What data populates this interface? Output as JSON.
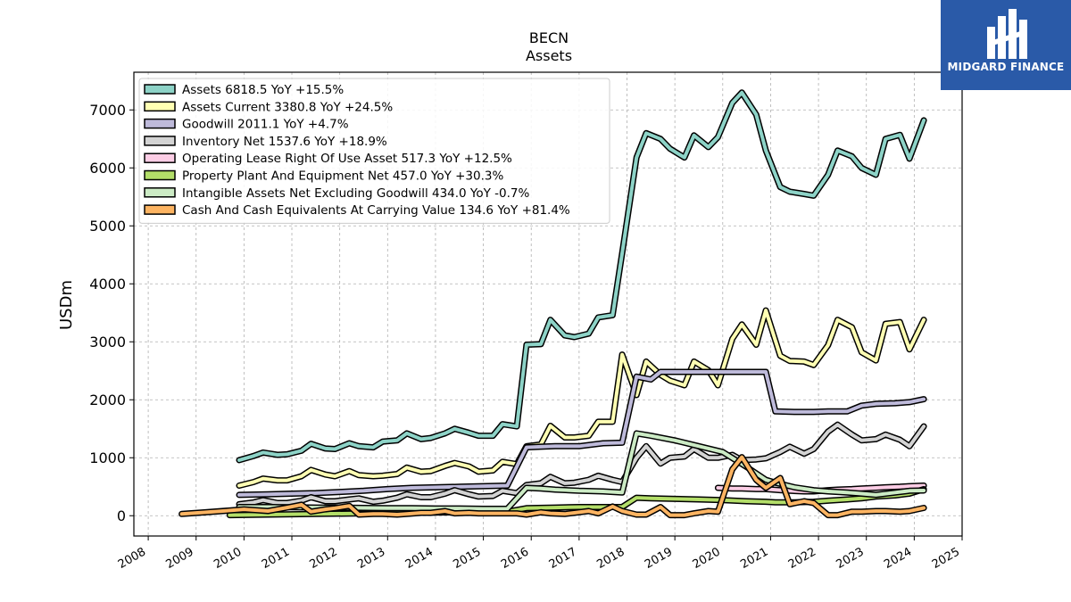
{
  "brand": {
    "name": "MIDGARD FINANCE",
    "color": "#2a5aa8"
  },
  "chart_data": {
    "type": "line",
    "title": "BECN",
    "subtitle": "Assets",
    "xlabel": "",
    "ylabel": "USDm",
    "xlim": [
      2007.7,
      2025.0
    ],
    "ylim": [
      -350,
      7650
    ],
    "xticks": [
      "2008",
      "2009",
      "2010",
      "2011",
      "2012",
      "2013",
      "2014",
      "2015",
      "2016",
      "2017",
      "2018",
      "2019",
      "2020",
      "2021",
      "2022",
      "2023",
      "2024",
      "2025"
    ],
    "yticks": [
      0,
      1000,
      2000,
      3000,
      4000,
      5000,
      6000,
      7000
    ],
    "grid": true,
    "legend_position": "top-left",
    "series": [
      {
        "name": "Assets 6818.5 YoY +15.5%",
        "color": "#8dd3c7",
        "x": [
          2009.9,
          2010.2,
          2010.4,
          2010.7,
          2010.9,
          2011.2,
          2011.4,
          2011.7,
          2011.9,
          2012.2,
          2012.4,
          2012.7,
          2012.9,
          2013.2,
          2013.4,
          2013.7,
          2013.9,
          2014.2,
          2014.4,
          2014.7,
          2014.9,
          2015.2,
          2015.4,
          2015.7,
          2015.9,
          2016.2,
          2016.4,
          2016.7,
          2016.9,
          2017.2,
          2017.4,
          2017.7,
          2017.9,
          2018.2,
          2018.4,
          2018.7,
          2018.9,
          2019.2,
          2019.4,
          2019.7,
          2019.9,
          2020.2,
          2020.4,
          2020.7,
          2020.9,
          2021.2,
          2021.4,
          2021.7,
          2021.9,
          2022.2,
          2022.4,
          2022.7,
          2022.9,
          2023.2,
          2023.4,
          2023.7,
          2023.9,
          2024.2
        ],
        "y": [
          960,
          1030,
          1090,
          1050,
          1060,
          1120,
          1240,
          1160,
          1150,
          1250,
          1200,
          1180,
          1280,
          1300,
          1420,
          1320,
          1340,
          1420,
          1500,
          1430,
          1380,
          1380,
          1580,
          1540,
          2950,
          2960,
          3380,
          3110,
          3080,
          3140,
          3420,
          3460,
          4530,
          6180,
          6600,
          6500,
          6330,
          6180,
          6560,
          6360,
          6530,
          7120,
          7300,
          6920,
          6300,
          5670,
          5590,
          5550,
          5520,
          5880,
          6300,
          6200,
          6000,
          5880,
          6500,
          6570,
          6160,
          6820
        ]
      },
      {
        "name": "Assets Current 3380.8 YoY +24.5%",
        "color": "#ffffb3",
        "x": [
          2009.9,
          2010.2,
          2010.4,
          2010.7,
          2010.9,
          2011.2,
          2011.4,
          2011.7,
          2011.9,
          2012.2,
          2012.4,
          2012.7,
          2012.9,
          2013.2,
          2013.4,
          2013.7,
          2013.9,
          2014.2,
          2014.4,
          2014.7,
          2014.9,
          2015.2,
          2015.4,
          2015.7,
          2015.9,
          2016.2,
          2016.4,
          2016.7,
          2016.9,
          2017.2,
          2017.4,
          2017.7,
          2017.9,
          2018.2,
          2018.4,
          2018.7,
          2018.9,
          2019.2,
          2019.4,
          2019.7,
          2019.9,
          2020.2,
          2020.4,
          2020.7,
          2020.9,
          2021.2,
          2021.4,
          2021.7,
          2021.9,
          2022.2,
          2022.4,
          2022.7,
          2022.9,
          2023.2,
          2023.4,
          2023.7,
          2023.9,
          2024.2
        ],
        "y": [
          520,
          580,
          640,
          610,
          610,
          680,
          790,
          710,
          680,
          770,
          700,
          680,
          690,
          720,
          830,
          760,
          770,
          860,
          910,
          850,
          760,
          780,
          930,
          890,
          1200,
          1230,
          1550,
          1350,
          1350,
          1380,
          1620,
          1620,
          2780,
          2080,
          2660,
          2430,
          2330,
          2250,
          2660,
          2510,
          2250,
          3050,
          3300,
          2950,
          3540,
          2760,
          2670,
          2660,
          2600,
          2940,
          3380,
          3250,
          2820,
          2680,
          3310,
          3340,
          2870,
          3380
        ]
      },
      {
        "name": "Goodwill 2011.1 YoY +4.7%",
        "color": "#bebada",
        "x": [
          2009.9,
          2010.5,
          2011.0,
          2011.5,
          2012.0,
          2012.5,
          2013.0,
          2013.5,
          2014.0,
          2014.5,
          2015.0,
          2015.5,
          2015.9,
          2016.2,
          2016.5,
          2017.0,
          2017.5,
          2017.9,
          2018.2,
          2018.5,
          2018.7,
          2019.0,
          2019.5,
          2020.0,
          2020.5,
          2020.9,
          2021.1,
          2021.5,
          2021.9,
          2022.2,
          2022.6,
          2022.9,
          2023.2,
          2023.6,
          2023.9,
          2024.2
        ],
        "y": [
          360,
          370,
          380,
          390,
          410,
          430,
          460,
          480,
          490,
          500,
          510,
          520,
          1180,
          1190,
          1200,
          1200,
          1250,
          1260,
          2400,
          2350,
          2480,
          2480,
          2480,
          2480,
          2480,
          2480,
          1800,
          1790,
          1790,
          1800,
          1800,
          1900,
          1930,
          1940,
          1960,
          2010
        ]
      },
      {
        "name": "Inventory Net 1537.6 YoY +18.9%",
        "color": "#d3d3d3",
        "x": [
          2009.9,
          2010.2,
          2010.4,
          2010.7,
          2010.9,
          2011.2,
          2011.4,
          2011.7,
          2011.9,
          2012.2,
          2012.4,
          2012.7,
          2012.9,
          2013.2,
          2013.4,
          2013.7,
          2013.9,
          2014.2,
          2014.4,
          2014.7,
          2014.9,
          2015.2,
          2015.4,
          2015.7,
          2015.9,
          2016.2,
          2016.4,
          2016.7,
          2016.9,
          2017.2,
          2017.4,
          2017.7,
          2017.9,
          2018.2,
          2018.4,
          2018.7,
          2018.9,
          2019.2,
          2019.4,
          2019.7,
          2019.9,
          2020.2,
          2020.4,
          2020.7,
          2020.9,
          2021.2,
          2021.4,
          2021.7,
          2021.9,
          2022.2,
          2022.4,
          2022.7,
          2022.9,
          2023.2,
          2023.4,
          2023.7,
          2023.9,
          2024.2
        ],
        "y": [
          200,
          230,
          270,
          220,
          220,
          260,
          320,
          250,
          250,
          280,
          300,
          240,
          260,
          310,
          370,
          320,
          320,
          380,
          440,
          370,
          330,
          340,
          430,
          390,
          530,
          560,
          670,
          560,
          570,
          620,
          690,
          620,
          580,
          1000,
          1200,
          900,
          1000,
          1020,
          1150,
          1000,
          1000,
          1050,
          960,
          970,
          990,
          1100,
          1190,
          1070,
          1150,
          1450,
          1570,
          1400,
          1300,
          1320,
          1400,
          1310,
          1200,
          1540
        ]
      },
      {
        "name": "Operating Lease Right Of Use Asset 517.3 YoY +12.5%",
        "color": "#fccde5",
        "x": [
          2019.9,
          2020.2,
          2020.4,
          2020.7,
          2020.9,
          2021.2,
          2021.4,
          2021.7,
          2021.9,
          2022.2,
          2022.4,
          2022.7,
          2022.9,
          2023.2,
          2023.4,
          2023.7,
          2023.9,
          2024.2
        ],
        "y": [
          480,
          470,
          470,
          460,
          460,
          440,
          430,
          420,
          420,
          440,
          450,
          460,
          470,
          480,
          490,
          500,
          510,
          520
        ]
      },
      {
        "name": "Property Plant And Equipment Net 457.0 YoY +30.3%",
        "color": "#b3de69",
        "x": [
          2009.7,
          2010.5,
          2011.5,
          2012.5,
          2013.5,
          2014.5,
          2015.5,
          2015.9,
          2016.5,
          2017.0,
          2017.5,
          2017.9,
          2018.2,
          2018.5,
          2019.0,
          2019.5,
          2020.0,
          2020.5,
          2020.9,
          2021.1,
          2021.5,
          2021.9,
          2022.2,
          2022.6,
          2022.9,
          2023.2,
          2023.6,
          2023.9,
          2024.2
        ],
        "y": [
          10,
          20,
          30,
          40,
          50,
          60,
          70,
          130,
          140,
          150,
          150,
          150,
          310,
          300,
          290,
          280,
          270,
          250,
          240,
          230,
          230,
          240,
          260,
          280,
          300,
          330,
          350,
          380,
          457
        ]
      },
      {
        "name": "Intangible Assets Net Excluding Goodwill 434.0 YoY -0.7%",
        "color": "#ccebc5",
        "x": [
          2009.9,
          2010.5,
          2011.0,
          2011.5,
          2012.0,
          2012.5,
          2013.0,
          2013.5,
          2014.0,
          2014.5,
          2015.0,
          2015.5,
          2015.9,
          2016.2,
          2016.5,
          2017.0,
          2017.5,
          2017.9,
          2018.2,
          2018.5,
          2019.0,
          2019.5,
          2020.0,
          2020.5,
          2020.9,
          2021.1,
          2021.5,
          2021.9,
          2022.2,
          2022.6,
          2022.9,
          2023.2,
          2023.6,
          2023.9,
          2024.2
        ],
        "y": [
          150,
          150,
          145,
          140,
          140,
          135,
          130,
          130,
          125,
          125,
          120,
          120,
          480,
          470,
          450,
          430,
          420,
          400,
          1420,
          1380,
          1300,
          1200,
          1100,
          840,
          620,
          570,
          490,
          440,
          420,
          400,
          380,
          360,
          400,
          430,
          434
        ]
      },
      {
        "name": "Cash And Cash Equivalents At Carrying Value 134.6 YoY +81.4%",
        "color": "#fdb462",
        "x": [
          2008.7,
          2009.2,
          2009.7,
          2010.0,
          2010.5,
          2010.9,
          2011.2,
          2011.4,
          2011.7,
          2011.9,
          2012.2,
          2012.4,
          2012.7,
          2012.9,
          2013.2,
          2013.4,
          2013.7,
          2013.9,
          2014.2,
          2014.4,
          2014.7,
          2014.9,
          2015.2,
          2015.4,
          2015.7,
          2015.9,
          2016.2,
          2016.4,
          2016.7,
          2016.9,
          2017.2,
          2017.4,
          2017.7,
          2017.9,
          2018.2,
          2018.4,
          2018.7,
          2018.9,
          2019.2,
          2019.4,
          2019.7,
          2019.9,
          2020.2,
          2020.4,
          2020.7,
          2020.9,
          2021.2,
          2021.4,
          2021.7,
          2021.9,
          2022.2,
          2022.4,
          2022.7,
          2022.9,
          2023.2,
          2023.4,
          2023.7,
          2023.9,
          2024.2
        ],
        "y": [
          30,
          60,
          90,
          110,
          80,
          140,
          190,
          70,
          110,
          130,
          170,
          20,
          30,
          30,
          20,
          30,
          50,
          50,
          80,
          40,
          50,
          40,
          40,
          40,
          40,
          20,
          60,
          40,
          30,
          50,
          80,
          40,
          160,
          80,
          20,
          20,
          150,
          10,
          10,
          40,
          80,
          70,
          800,
          1010,
          620,
          480,
          650,
          200,
          250,
          220,
          10,
          10,
          70,
          70,
          80,
          80,
          70,
          80,
          135
        ]
      }
    ]
  }
}
